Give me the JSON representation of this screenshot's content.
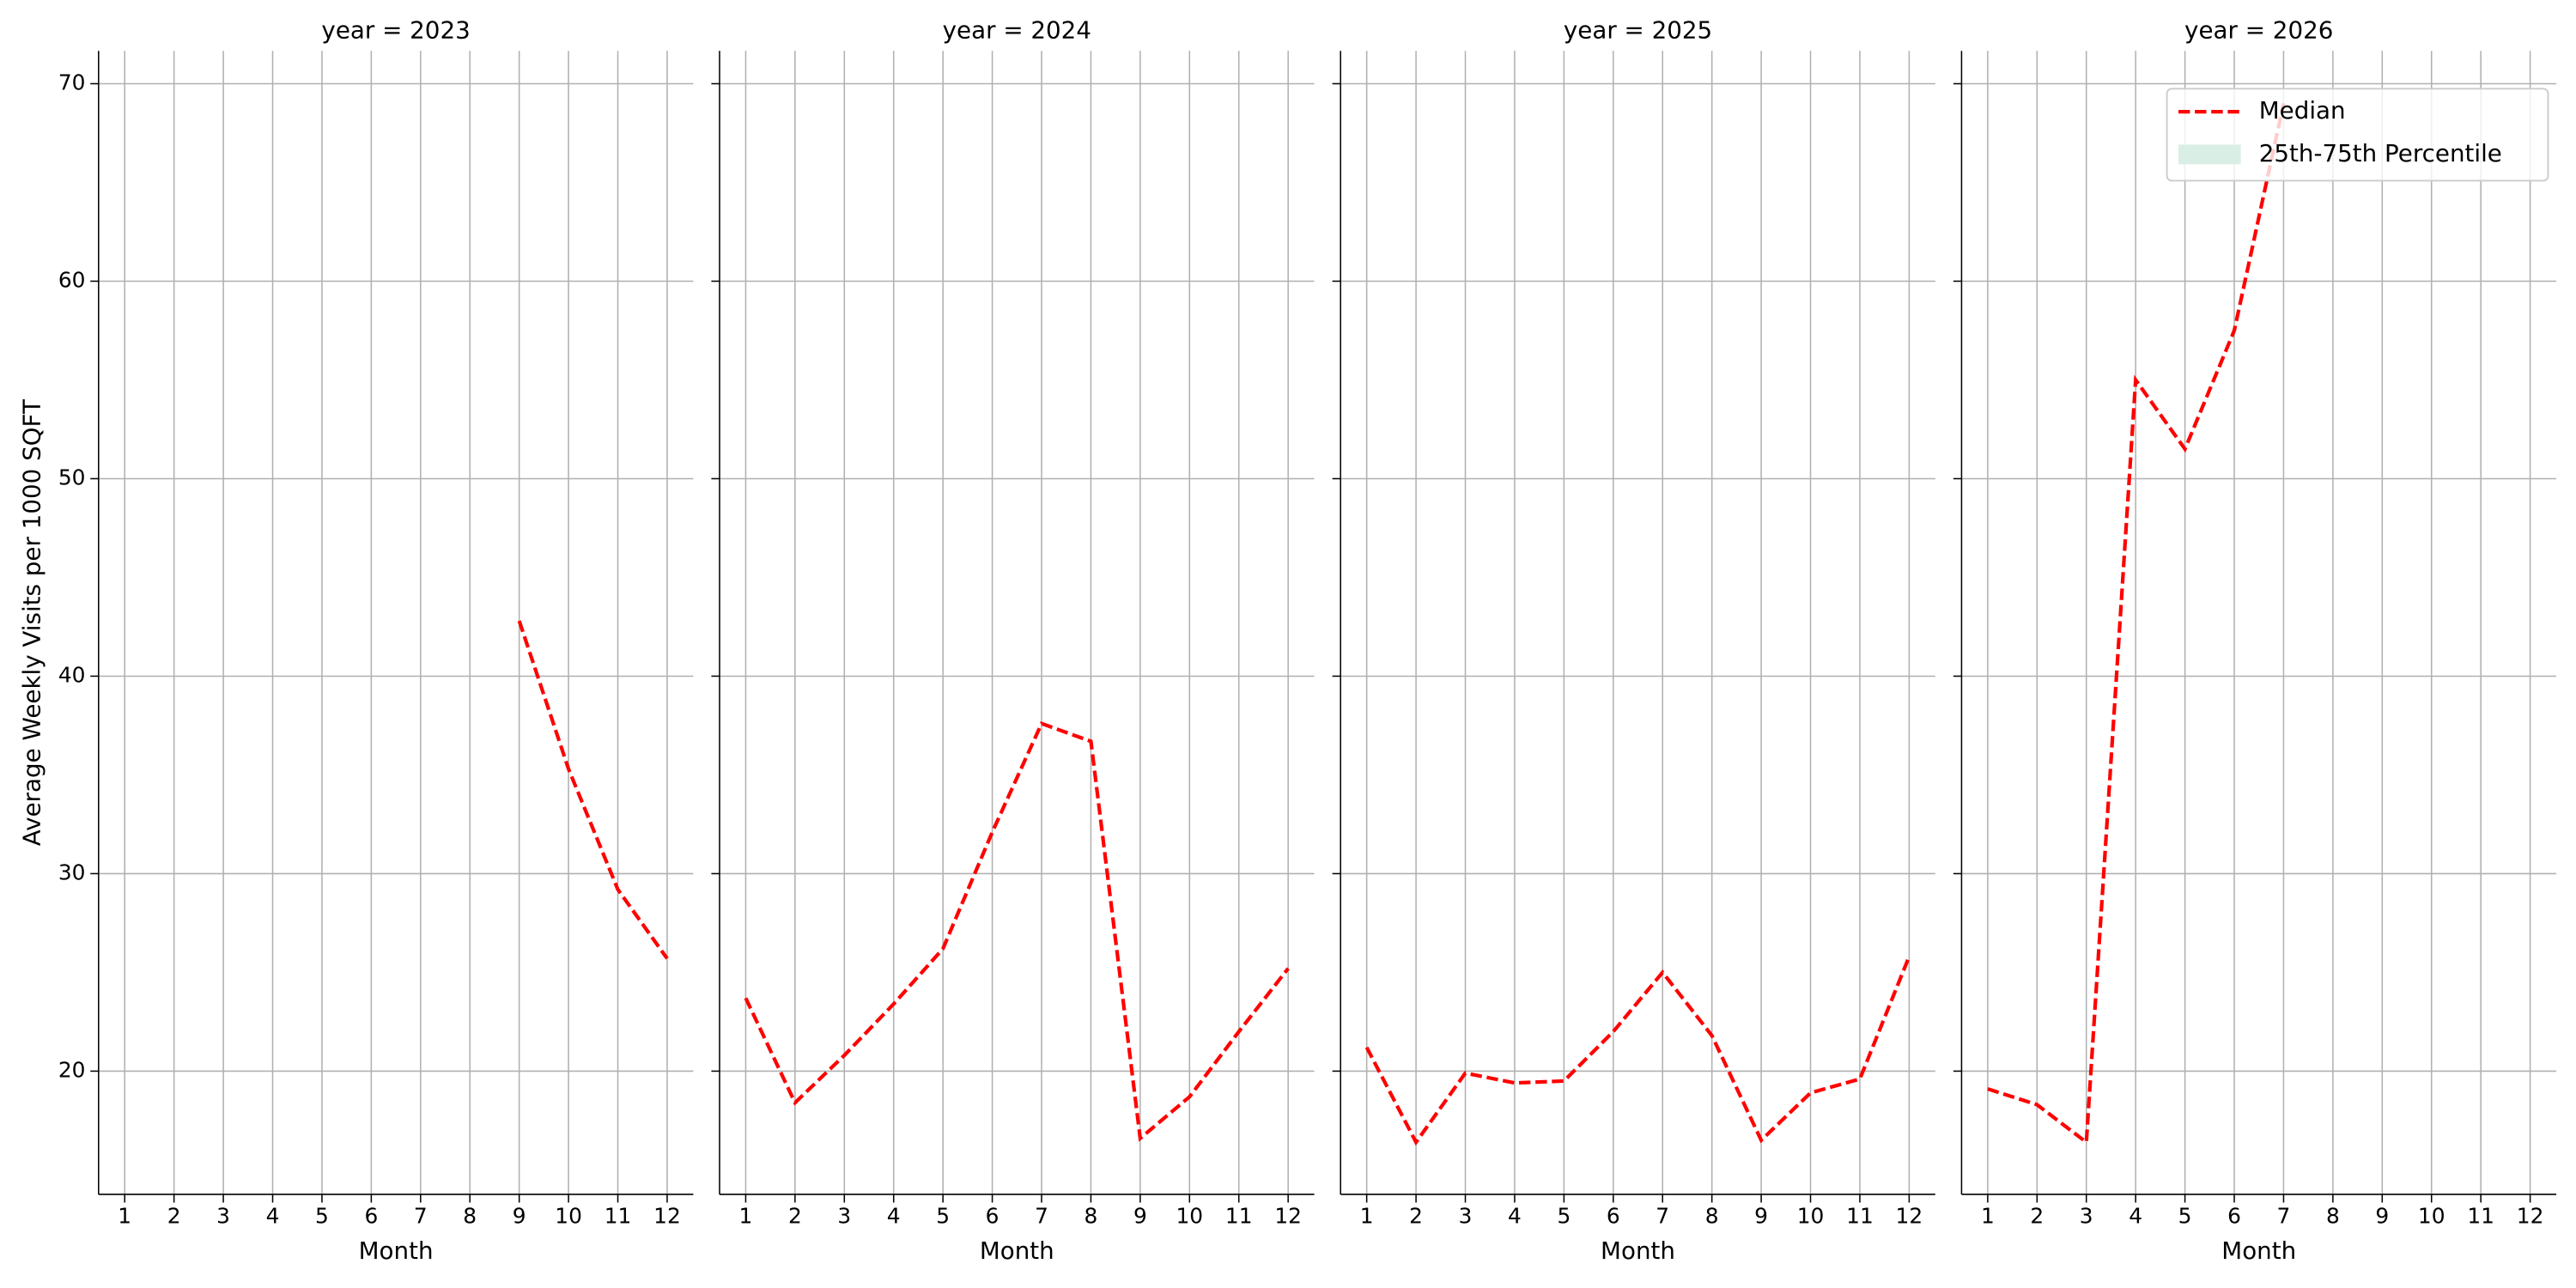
{
  "chart_data": [
    {
      "type": "line",
      "title": "year = 2023",
      "xlabel": "Month",
      "ylabel": "Average Weekly Visits per 1000 SQFT",
      "x": [
        1,
        2,
        3,
        4,
        5,
        6,
        7,
        8,
        9,
        10,
        11,
        12
      ],
      "series": [
        {
          "name": "Median",
          "color": "#ff0000",
          "values": [
            null,
            null,
            null,
            null,
            null,
            null,
            null,
            null,
            42.8,
            35.3,
            29.2,
            25.7
          ]
        }
      ],
      "xlim": [
        0.47,
        12.53
      ],
      "xticks": [
        1,
        2,
        3,
        4,
        5,
        6,
        7,
        8,
        9,
        10,
        11,
        12
      ],
      "ylim": [
        13.76,
        71.66
      ],
      "yticks": [
        20,
        30,
        40,
        50,
        60,
        70
      ],
      "grid": true
    },
    {
      "type": "line",
      "title": "year = 2024",
      "xlabel": "Month",
      "x": [
        1,
        2,
        3,
        4,
        5,
        6,
        7,
        8,
        9,
        10,
        11,
        12
      ],
      "series": [
        {
          "name": "Median",
          "color": "#ff0000",
          "values": [
            23.7,
            18.4,
            20.8,
            23.4,
            26.2,
            32.1,
            37.6,
            36.7,
            16.6,
            18.7,
            22.0,
            25.2
          ]
        }
      ],
      "xlim": [
        0.47,
        12.53
      ],
      "xticks": [
        1,
        2,
        3,
        4,
        5,
        6,
        7,
        8,
        9,
        10,
        11,
        12
      ],
      "ylim": [
        13.76,
        71.66
      ],
      "yticks": [
        20,
        30,
        40,
        50,
        60,
        70
      ],
      "grid": true
    },
    {
      "type": "line",
      "title": "year = 2025",
      "xlabel": "Month",
      "x": [
        1,
        2,
        3,
        4,
        5,
        6,
        7,
        8,
        9,
        10,
        11,
        12
      ],
      "series": [
        {
          "name": "Median",
          "color": "#ff0000",
          "values": [
            21.2,
            16.4,
            19.9,
            19.4,
            19.5,
            22.0,
            25.0,
            21.8,
            16.5,
            18.9,
            19.6,
            25.8
          ]
        }
      ],
      "xlim": [
        0.47,
        12.53
      ],
      "xticks": [
        1,
        2,
        3,
        4,
        5,
        6,
        7,
        8,
        9,
        10,
        11,
        12
      ],
      "ylim": [
        13.76,
        71.66
      ],
      "yticks": [
        20,
        30,
        40,
        50,
        60,
        70
      ],
      "grid": true
    },
    {
      "type": "line",
      "title": "year = 2026",
      "xlabel": "Month",
      "x": [
        1,
        2,
        3,
        4,
        5,
        6,
        7,
        8,
        9,
        10,
        11,
        12
      ],
      "series": [
        {
          "name": "Median",
          "color": "#ff0000",
          "values": [
            19.1,
            18.3,
            16.4,
            55.0,
            51.5,
            57.5,
            69.0,
            null,
            null,
            null,
            null,
            null
          ]
        },
        {
          "name": "25th-75th Percentile",
          "color": "#d9efe6",
          "values": [
            null,
            null,
            null,
            null,
            null,
            null,
            null,
            null,
            null,
            null,
            null,
            null
          ]
        }
      ],
      "xlim": [
        0.47,
        12.53
      ],
      "xticks": [
        1,
        2,
        3,
        4,
        5,
        6,
        7,
        8,
        9,
        10,
        11,
        12
      ],
      "ylim": [
        13.76,
        71.66
      ],
      "yticks": [
        20,
        30,
        40,
        50,
        60,
        70
      ],
      "grid": true,
      "legend": "upper right"
    }
  ]
}
